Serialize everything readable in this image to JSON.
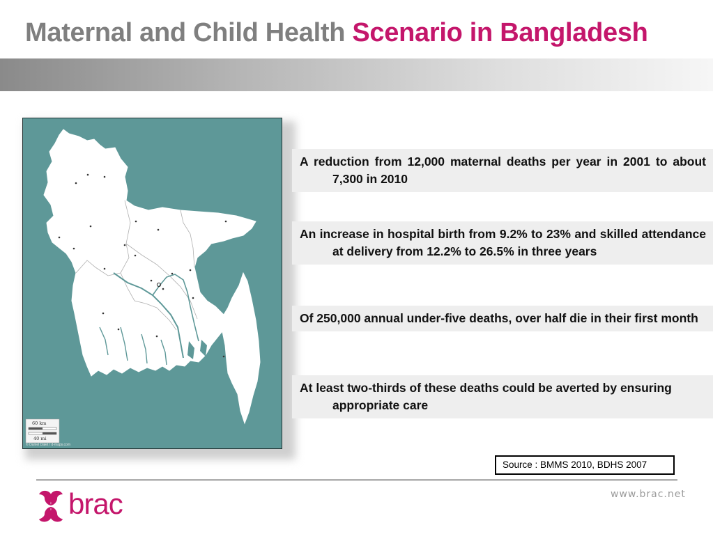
{
  "header": {
    "title_grey": "Maternal and Child Health",
    "title_pink": "Scenario in Bangladesh"
  },
  "map": {
    "scale_km": "60 km",
    "scale_mi": "40 mi",
    "credit": "© Daniel Dalet / d-maps.com"
  },
  "bullets": [
    "A reduction from 12,000 maternal deaths per year in 2001 to about 7,300 in 2010",
    "An increase in hospital birth from 9.2% to 23% and skilled attendance at delivery from 12.2% to 26.5% in three years",
    "Of 250,000 annual under-five deaths, over half die in their first month",
    "At least  two-thirds of these deaths could be averted by ensuring appropriate care"
  ],
  "source": "Source : BMMS 2010, BDHS 2007",
  "footer": {
    "logo_text": "brac",
    "url": "www.brac.net"
  },
  "colors": {
    "title_grey": "#7f7f7f",
    "accent_pink": "#c4166b",
    "map_water": "#5e9898"
  }
}
